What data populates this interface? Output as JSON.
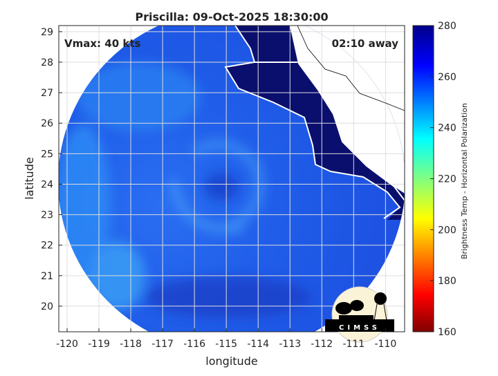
{
  "title": "Priscilla: 09-Oct-2025 18:30:00",
  "annotations": {
    "vmax": "Vmax: 40 kts",
    "time_away": "02:10 away"
  },
  "logo_text": "CIMSS",
  "chart_data": {
    "type": "heatmap",
    "title": "Priscilla: 09-Oct-2025 18:30:00",
    "xlabel": "longitude",
    "ylabel": "latitude",
    "xticks": [
      -120,
      -119,
      -118,
      -117,
      -116,
      -115,
      -114,
      -113,
      -112,
      -111,
      -110
    ],
    "yticks": [
      20,
      21,
      22,
      23,
      24,
      25,
      26,
      27,
      28,
      29
    ],
    "xlim": [
      -120.26,
      -109.4
    ],
    "ylim": [
      19.16,
      29.2
    ],
    "grid": true,
    "colorbar": {
      "label": "Brightness Temp - Horizontal Polarization",
      "ticks": [
        160,
        180,
        200,
        220,
        240,
        260,
        280
      ],
      "range": [
        160,
        280
      ],
      "colormap": "jet"
    }
  },
  "colors": {
    "land": "#0a0f6e",
    "ocean": "#1d52e6",
    "ocean_light": "#2f8cf5"
  }
}
